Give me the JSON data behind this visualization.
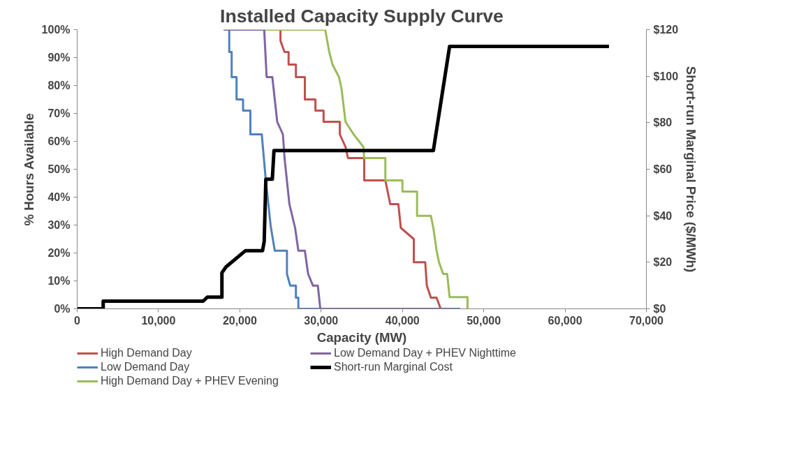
{
  "chart_data": {
    "type": "line",
    "title": "Installed Capacity Supply Curve",
    "xlabel": "Capacity (MW)",
    "ylabel": "% Hours Available",
    "y2label": "Short-run Marginal Price ($/MWh)",
    "xlim": [
      0,
      70000
    ],
    "xticks": [
      0,
      {
        "value": 10000,
        "label": "10,000"
      },
      {
        "value": 20000,
        "label": "20,000"
      },
      {
        "value": 30000,
        "label": "30,000"
      },
      {
        "value": 40000,
        "label": "40,000"
      },
      {
        "value": 50000,
        "label": "50,000"
      },
      {
        "value": 60000,
        "label": "60,000"
      },
      {
        "value": 70000,
        "label": "70,000"
      }
    ],
    "ylim": [
      0,
      100
    ],
    "yticks": [
      {
        "value": 0,
        "label": "0%"
      },
      {
        "value": 10,
        "label": "10%"
      },
      {
        "value": 20,
        "label": "20%"
      },
      {
        "value": 30,
        "label": "30%"
      },
      {
        "value": 40,
        "label": "40%"
      },
      {
        "value": 50,
        "label": "50%"
      },
      {
        "value": 60,
        "label": "60%"
      },
      {
        "value": 70,
        "label": "70%"
      },
      {
        "value": 80,
        "label": "80%"
      },
      {
        "value": 90,
        "label": "90%"
      },
      {
        "value": 100,
        "label": "100%"
      }
    ],
    "y2lim": [
      0,
      120
    ],
    "y2ticks": [
      {
        "value": 0,
        "label": "$0"
      },
      {
        "value": 20,
        "label": "$20"
      },
      {
        "value": 40,
        "label": "$40"
      },
      {
        "value": 60,
        "label": "$60"
      },
      {
        "value": 80,
        "label": "$80"
      },
      {
        "value": 100,
        "label": "$100"
      },
      {
        "value": 120,
        "label": "$120"
      }
    ],
    "grid": false,
    "legend": "bottom",
    "marker": "none",
    "line_style": "solid",
    "series": [
      {
        "name": "High Demand Day",
        "color": "#c0504d",
        "x": [
          25000,
          25000,
          25500,
          26000,
          26000,
          26900,
          26900,
          28000,
          28000,
          29300,
          29300,
          30300,
          30300,
          32300,
          32300,
          33000,
          33300,
          35300,
          35300,
          37900,
          38500,
          39500,
          39800,
          41400,
          41400,
          42800,
          43000,
          43500,
          44200,
          44700
        ],
        "values": [
          100,
          96,
          92,
          92,
          87.5,
          87.5,
          83,
          83,
          75,
          75,
          71,
          71,
          67,
          67,
          62.5,
          58,
          54,
          54,
          46,
          46,
          37.5,
          37.5,
          29,
          25,
          16.7,
          16.7,
          8.3,
          4,
          4,
          0
        ]
      },
      {
        "name": "Low Demand Day",
        "color": "#4f81bd",
        "x": [
          18700,
          18700,
          19000,
          19000,
          19600,
          19600,
          20400,
          20400,
          21300,
          21300,
          22700,
          23200,
          23800,
          24300,
          25800,
          25800,
          26200,
          26900,
          26900,
          27200,
          27200,
          47100
        ],
        "values": [
          100,
          92,
          92,
          83,
          83,
          75,
          75,
          71,
          71,
          62.5,
          62.5,
          46,
          29.6,
          20.8,
          20.8,
          12.5,
          8.3,
          8.3,
          4,
          4,
          0,
          0
        ]
      },
      {
        "name": "High Demand Day + PHEV Evening",
        "color": "#9bbb59",
        "x": [
          23000,
          30500,
          31000,
          31400,
          32200,
          32500,
          33000,
          34000,
          35200,
          35300,
          37900,
          37900,
          40000,
          40000,
          41800,
          41800,
          43500,
          43800,
          44200,
          44500,
          45000,
          45500,
          45800,
          48000,
          48000
        ],
        "values": [
          100,
          100,
          92,
          87.5,
          83,
          79,
          67,
          62.5,
          58,
          54,
          54,
          46,
          46,
          42,
          42,
          33.3,
          33.3,
          29,
          20.8,
          16.7,
          12.5,
          12.5,
          4.2,
          4.2,
          0
        ]
      },
      {
        "name": "Low Demand Day + PHEV Nighttime",
        "color": "#8064a2",
        "x": [
          18000,
          23000,
          23300,
          24000,
          24300,
          24600,
          25300,
          25500,
          26100,
          26800,
          27200,
          28000,
          28400,
          29000,
          29600,
          29900,
          45800
        ],
        "values": [
          100,
          100,
          83,
          83,
          75,
          67,
          62.5,
          54,
          37.5,
          29,
          20.8,
          20.8,
          12.5,
          8.3,
          8.3,
          0,
          0
        ]
      },
      {
        "name": "Short-run Marginal Cost",
        "color": "#000000",
        "axis": "y2",
        "x": [
          0,
          3200,
          3200,
          15500,
          16000,
          17800,
          17800,
          18300,
          20700,
          22800,
          23000,
          23200,
          24000,
          24200,
          43800,
          45800,
          65400
        ],
        "values": [
          0,
          0,
          3.3,
          3.3,
          5,
          5,
          15.5,
          18,
          25,
          25,
          29,
          55.7,
          55.7,
          68,
          68,
          112.8,
          112.8
        ]
      }
    ]
  }
}
